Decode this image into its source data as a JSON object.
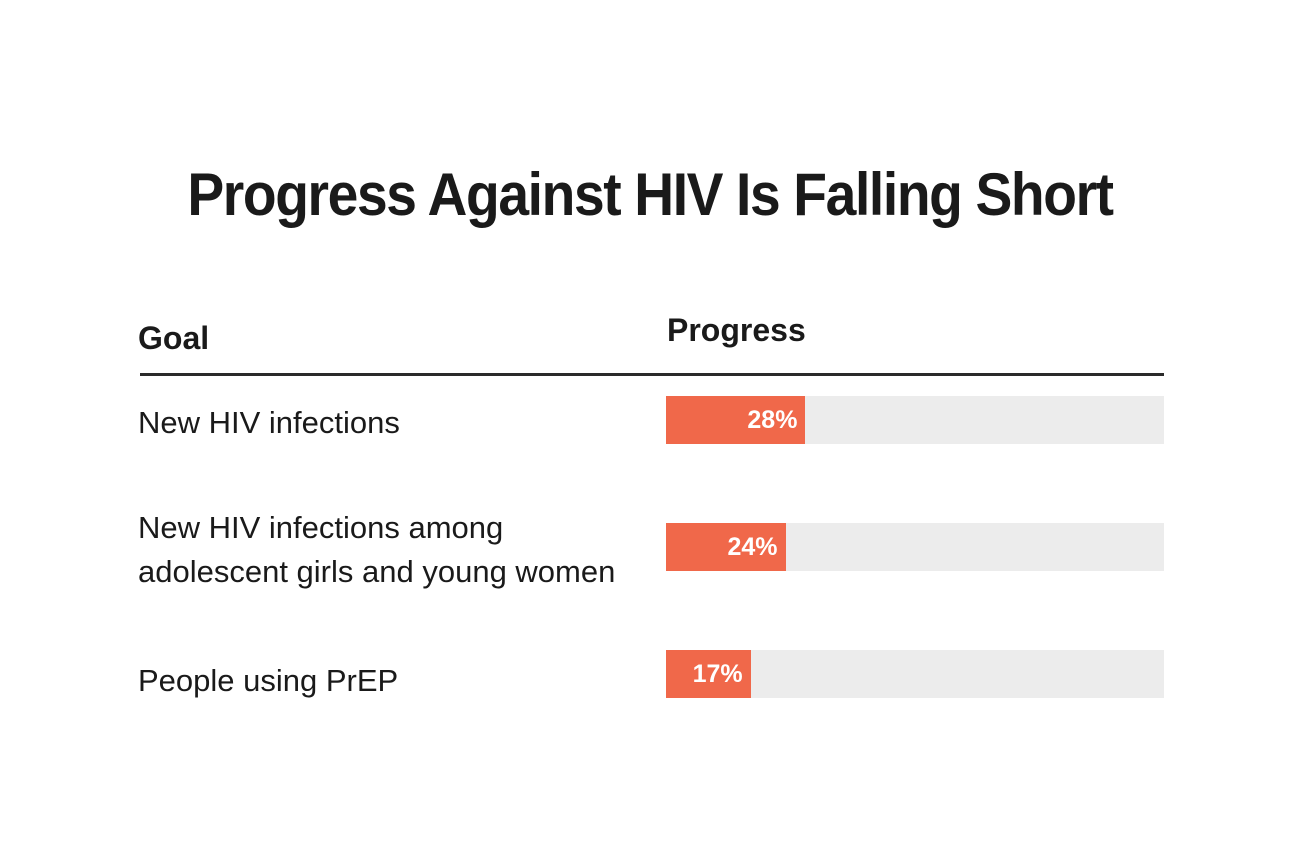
{
  "colors": {
    "bar_fill": "#f0684a",
    "bar_track": "#ececec",
    "text": "#1a1a1a",
    "value_text": "#ffffff"
  },
  "chart_data": {
    "type": "bar",
    "orientation": "horizontal",
    "title": "Progress Against HIV Is Falling Short",
    "columns": {
      "goal": "Goal",
      "progress": "Progress"
    },
    "xlim": [
      0,
      100
    ],
    "grid": false,
    "rows": [
      {
        "label": "New HIV infections",
        "value": 28,
        "value_label": "28%"
      },
      {
        "label": "New HIV infections among adolescent girls and young women",
        "value": 24,
        "value_label": "24%"
      },
      {
        "label": "People using PrEP",
        "value": 17,
        "value_label": "17%"
      }
    ]
  }
}
